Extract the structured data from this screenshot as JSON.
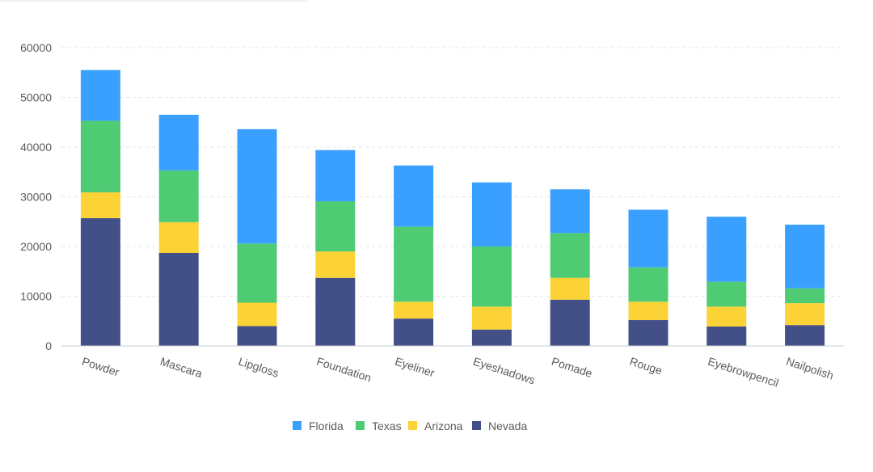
{
  "chart_data": {
    "type": "bar",
    "stacked": true,
    "categories": [
      "Powder",
      "Mascara",
      "Lipgloss",
      "Foundation",
      "Eyeliner",
      "Eyeshadows",
      "Pomade",
      "Rouge",
      "Eyebrowpencil",
      "Nailpolish"
    ],
    "series": [
      {
        "name": "Nevada",
        "color": "#435088",
        "values": [
          25700,
          18700,
          4000,
          13700,
          5500,
          3300,
          9300,
          5200,
          3900,
          4200
        ]
      },
      {
        "name": "Arizona",
        "color": "#fbd337",
        "values": [
          5200,
          6200,
          4700,
          5300,
          3400,
          4600,
          4400,
          3700,
          4000,
          4400
        ]
      },
      {
        "name": "Texas",
        "color": "#4ecb73",
        "values": [
          14400,
          10400,
          11900,
          10100,
          15100,
          12100,
          9000,
          6900,
          5000,
          3000
        ]
      },
      {
        "name": "Florida",
        "color": "#3aa0ff",
        "values": [
          10200,
          11200,
          23000,
          10300,
          12300,
          12900,
          8800,
          11600,
          13100,
          12800
        ]
      }
    ],
    "legend_order": [
      "Florida",
      "Texas",
      "Arizona",
      "Nevada"
    ],
    "yticks": [
      0,
      10000,
      20000,
      30000,
      40000,
      50000,
      60000
    ],
    "ylim": [
      0,
      60000
    ],
    "grid": true,
    "legend_position": "bottom-center",
    "x_label_rotation": "slanted"
  }
}
